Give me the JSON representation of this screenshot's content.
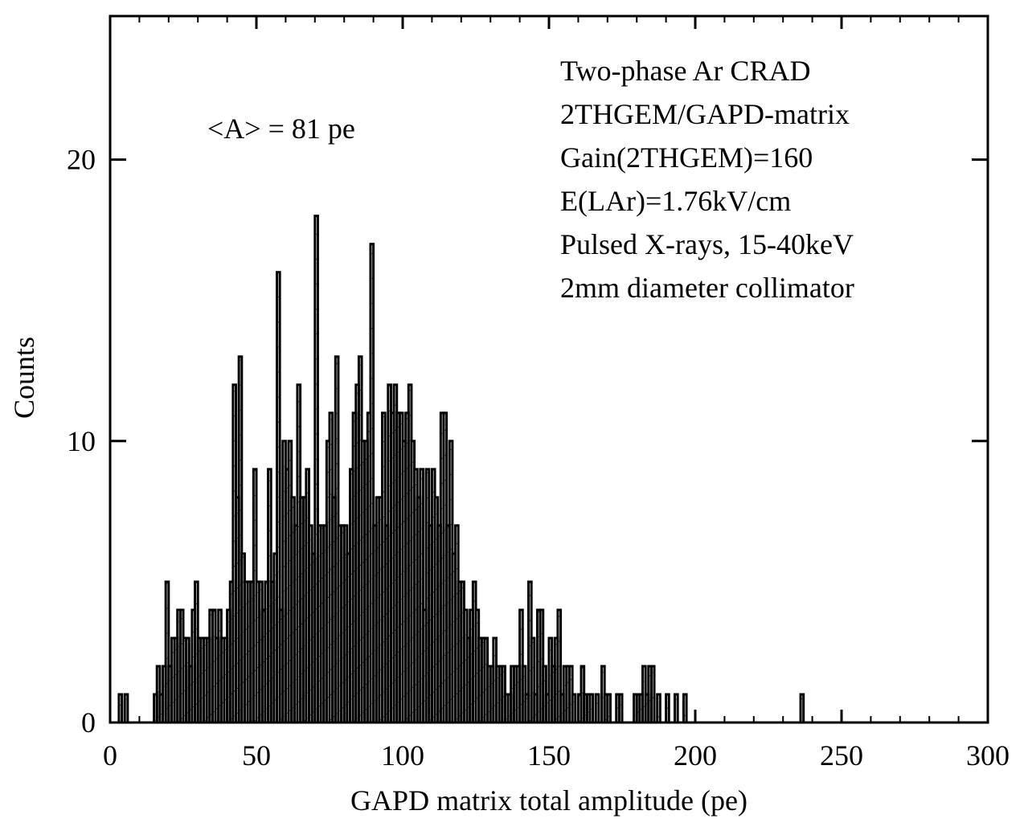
{
  "chart_data": {
    "type": "histogram",
    "xlabel": "GAPD matrix total amplitude  (pe)",
    "ylabel": "Counts",
    "xlim": [
      0,
      300
    ],
    "ylim": [
      0,
      20
    ],
    "x_ticks": [
      0,
      50,
      100,
      150,
      200,
      250,
      300
    ],
    "y_ticks": [
      0,
      10,
      20
    ],
    "annotations": {
      "mean": "<A> = 81 pe",
      "info_lines": [
        "Two-phase Ar CRAD",
        "2THGEM/GAPD-matrix",
        "Gain(2THGEM)=160",
        "E(LAr)=1.76kV/cm",
        "Pulsed X-rays, 15-40keV",
        "2mm diameter collimator"
      ]
    },
    "bin_width": 1,
    "bin_start": 0,
    "counts": [
      0,
      0,
      0,
      1,
      0,
      1,
      0,
      0,
      0,
      0,
      0,
      0,
      0,
      0,
      0,
      1,
      2,
      1,
      2,
      5,
      2,
      3,
      3,
      4,
      4,
      3,
      3,
      2,
      4,
      5,
      3,
      3,
      3,
      3,
      4,
      4,
      3,
      4,
      3,
      3,
      4,
      5,
      12,
      8,
      13,
      6,
      5,
      5,
      5,
      9,
      5,
      5,
      4,
      5,
      9,
      5,
      6,
      16,
      4,
      10,
      9,
      10,
      8,
      7,
      12,
      8,
      8,
      9,
      7,
      6,
      18,
      7,
      7,
      7,
      10,
      11,
      8,
      13,
      7,
      7,
      7,
      6,
      9,
      11,
      12,
      13,
      10,
      10,
      11,
      17,
      7,
      8,
      8,
      11,
      7,
      12,
      11,
      12,
      11,
      11,
      10,
      11,
      12,
      10,
      9,
      8,
      9,
      4,
      9,
      7,
      9,
      8,
      7,
      11,
      11,
      7,
      10,
      6,
      7,
      5,
      5,
      4,
      3,
      4,
      5,
      4,
      3,
      3,
      3,
      2,
      2,
      3,
      2,
      2,
      2,
      1,
      1,
      2,
      2,
      2,
      4,
      2,
      1,
      5,
      3,
      1,
      4,
      4,
      2,
      1,
      3,
      2,
      3,
      4,
      1,
      2,
      2,
      2,
      1,
      0,
      1,
      2,
      1,
      1,
      1,
      0,
      1,
      0,
      2,
      1,
      1,
      0,
      0,
      1,
      1,
      0,
      0,
      0,
      0,
      1,
      1,
      1,
      2,
      1,
      2,
      2,
      0,
      1,
      0,
      0,
      1,
      0,
      0,
      1,
      0,
      0,
      1,
      0,
      0,
      0,
      0,
      0,
      0,
      0,
      0,
      0,
      0,
      0,
      0,
      0,
      0,
      0,
      0,
      0,
      0,
      0,
      0,
      0,
      0,
      0,
      0,
      0,
      0,
      0,
      0,
      0,
      0,
      0,
      0,
      0,
      0,
      0,
      0,
      0,
      0,
      0,
      1,
      0,
      0,
      0,
      0,
      0,
      0,
      0,
      0,
      0,
      0,
      0,
      0,
      0,
      0,
      0,
      0,
      0,
      0,
      0,
      0,
      0,
      0,
      0,
      0,
      0,
      0,
      0,
      0,
      0,
      0,
      0,
      0,
      0,
      0,
      0,
      0,
      0,
      0,
      0,
      0,
      0,
      0,
      0,
      0,
      0,
      0,
      0,
      0,
      0,
      0,
      0,
      0,
      0,
      0,
      0,
      0,
      0,
      0,
      0,
      0,
      0,
      0,
      0,
      0,
      0,
      0,
      0,
      0,
      0,
      0,
      0,
      0,
      0
    ],
    "grid": false,
    "fill": "diagonal-hatch"
  }
}
